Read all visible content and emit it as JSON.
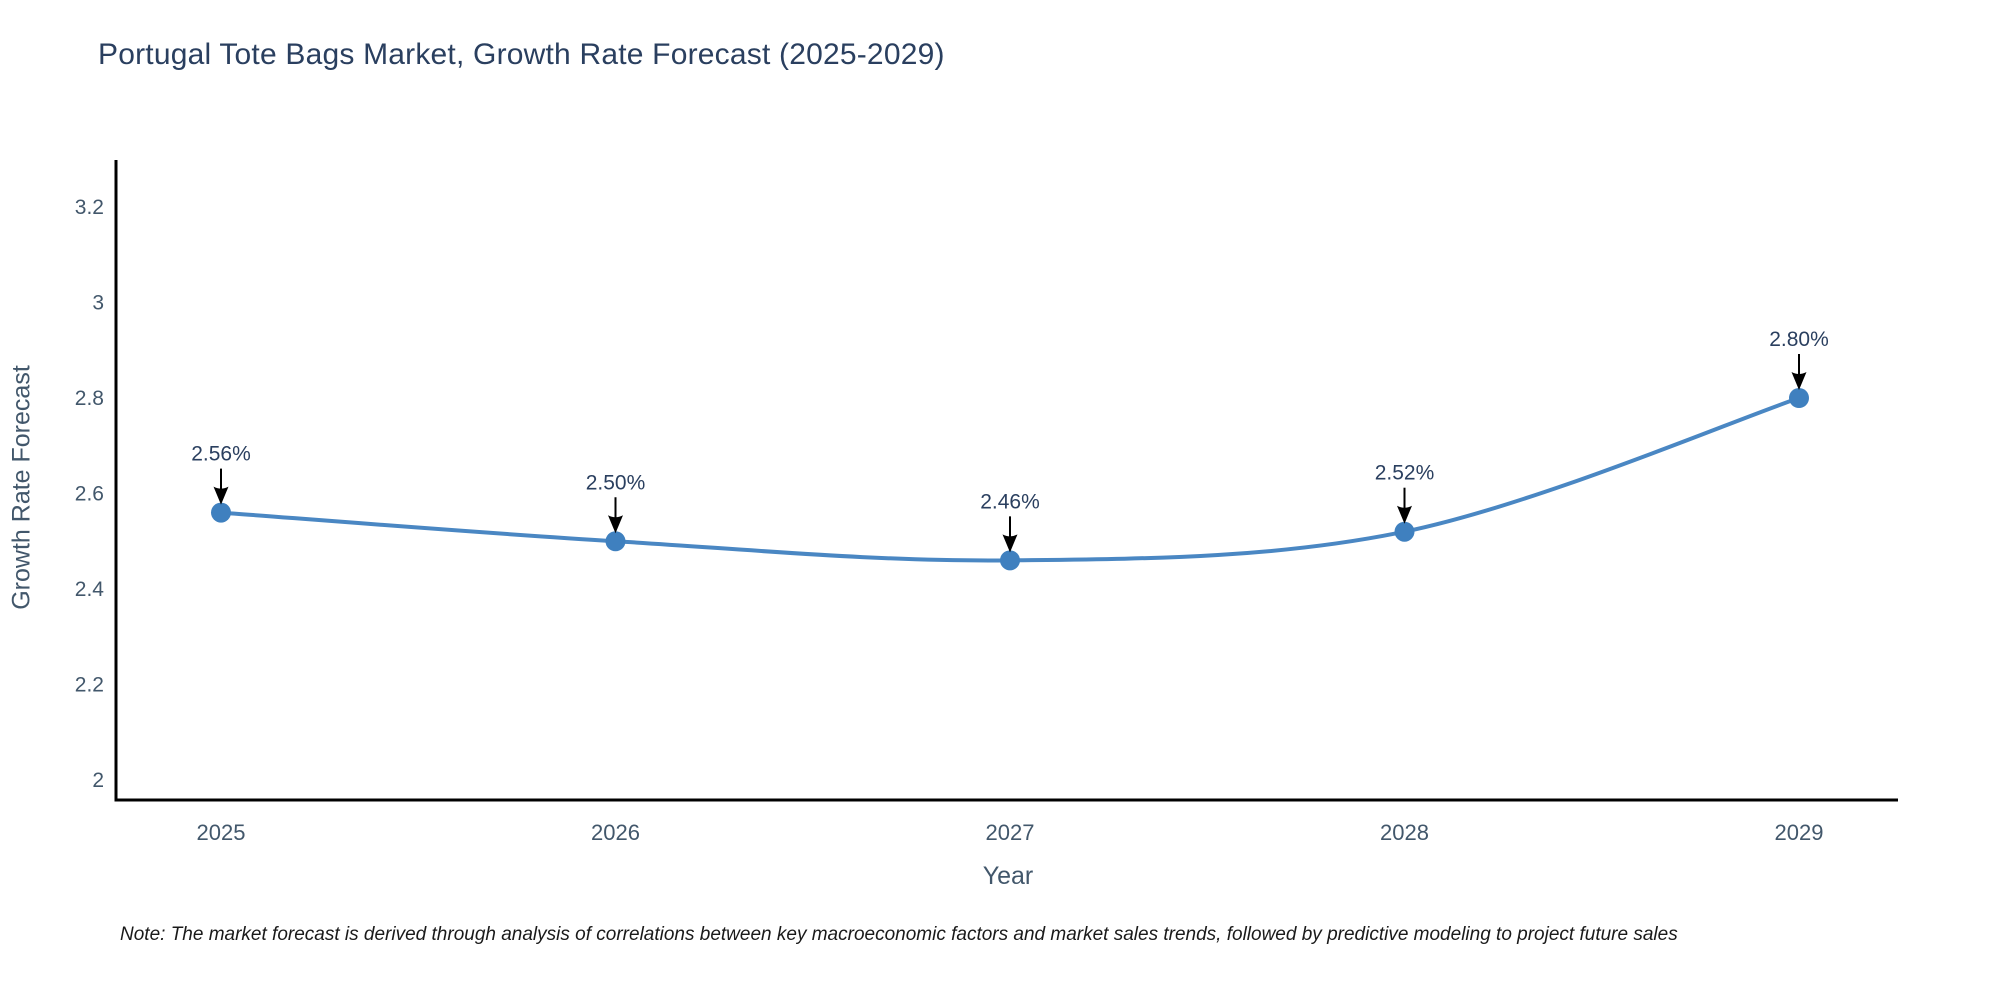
{
  "title": {
    "text": "Portugal Tote Bags Market, Growth Rate Forecast (2025-2029)",
    "color": "#2a3f5f"
  },
  "note": {
    "text": "Note: The market forecast is derived through analysis of correlations between key macroeconomic factors and market sales trends, followed by predictive modeling to project future sales"
  },
  "chart_data": {
    "type": "line",
    "title": "Portugal Tote Bags Market, Growth Rate Forecast (2025-2029)",
    "xlabel": "Year",
    "ylabel": "Growth Rate Forecast",
    "categories": [
      "2025",
      "2026",
      "2027",
      "2028",
      "2029"
    ],
    "x": [
      2025,
      2026,
      2027,
      2028,
      2029
    ],
    "series": [
      {
        "name": "Growth Rate Forecast",
        "values": [
          2.56,
          2.5,
          2.46,
          2.52,
          2.8
        ],
        "point_labels": [
          "2.56%",
          "2.50%",
          "2.46%",
          "2.52%",
          "2.80%"
        ]
      }
    ],
    "ylim": [
      1.958,
      3.343
    ],
    "yticks": [
      2,
      2.2,
      2.4,
      2.6,
      2.8,
      3,
      3.2
    ],
    "ytick_labels": [
      "2",
      "2.2",
      "2.4",
      "2.6",
      "2.8",
      "3",
      "3.2"
    ],
    "xtick_labels": [
      "2025",
      "2026",
      "2027",
      "2028",
      "2029"
    ],
    "grid": false,
    "legend_position": "none",
    "line_shape": "spline",
    "marker": "circle",
    "annotation_arrows": true,
    "colors": {
      "line": "#4a87c3",
      "marker": "#3f80bf",
      "axis": "#000000",
      "tick_label": "#42576b",
      "axis_title": "#42576b",
      "annotation_text": "#2a3f5f",
      "arrow": "#000000",
      "background": "#ffffff"
    }
  }
}
